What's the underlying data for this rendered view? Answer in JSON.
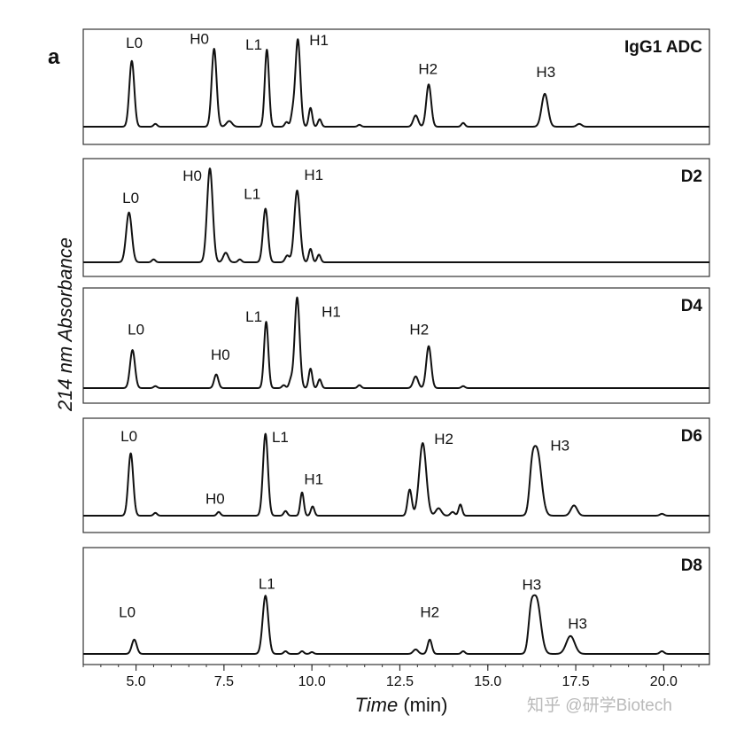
{
  "figure_letter": "a",
  "watermark": "知乎 @研学Biotech",
  "chart_data": {
    "type": "line",
    "xlabel_italic": "Time",
    "xlabel_unit": "(min)",
    "ylabel": "214 nm Absorbance",
    "xlim": [
      3.5,
      21.3
    ],
    "x_ticks": [
      {
        "value": 5,
        "label": "5.0"
      },
      {
        "value": 7.5,
        "label": "7.5"
      },
      {
        "value": 10,
        "label": "10.0"
      },
      {
        "value": 12.5,
        "label": "12.5"
      },
      {
        "value": 15,
        "label": "15.0"
      },
      {
        "value": 17.5,
        "label": "17.5"
      },
      {
        "value": 20,
        "label": "20.0"
      }
    ],
    "minor_tick_step": 0.5,
    "grid": false,
    "panels": [
      {
        "name": "IgG1 ADC",
        "peaks": [
          {
            "t": 4.88,
            "h": 0.7,
            "w": 0.07
          },
          {
            "t": 5.55,
            "h": 0.03,
            "w": 0.05
          },
          {
            "t": 7.22,
            "h": 0.83,
            "w": 0.07
          },
          {
            "t": 7.65,
            "h": 0.06,
            "w": 0.08
          },
          {
            "t": 8.72,
            "h": 0.82,
            "w": 0.06
          },
          {
            "t": 9.28,
            "h": 0.05,
            "w": 0.05
          },
          {
            "t": 9.45,
            "h": 0.12,
            "w": 0.05
          },
          {
            "t": 9.6,
            "h": 0.93,
            "w": 0.07
          },
          {
            "t": 9.96,
            "h": 0.2,
            "w": 0.05
          },
          {
            "t": 10.22,
            "h": 0.08,
            "w": 0.05
          },
          {
            "t": 11.35,
            "h": 0.02,
            "w": 0.05
          },
          {
            "t": 12.95,
            "h": 0.12,
            "w": 0.07
          },
          {
            "t": 13.32,
            "h": 0.45,
            "w": 0.07
          },
          {
            "t": 14.3,
            "h": 0.04,
            "w": 0.05
          },
          {
            "t": 16.62,
            "h": 0.35,
            "w": 0.09
          },
          {
            "t": 17.6,
            "h": 0.03,
            "w": 0.07
          }
        ],
        "labels": [
          {
            "text": "L0",
            "t": 4.95,
            "h": 0.84
          },
          {
            "text": "H0",
            "t": 6.8,
            "h": 0.88
          },
          {
            "text": "L1",
            "t": 8.35,
            "h": 0.82
          },
          {
            "text": "H1",
            "t": 10.2,
            "h": 0.87
          },
          {
            "text": "H2",
            "t": 13.3,
            "h": 0.56
          },
          {
            "text": "H3",
            "t": 16.65,
            "h": 0.53
          }
        ]
      },
      {
        "name": "D2",
        "peaks": [
          {
            "t": 4.8,
            "h": 0.52,
            "w": 0.08
          },
          {
            "t": 5.5,
            "h": 0.03,
            "w": 0.05
          },
          {
            "t": 7.1,
            "h": 0.98,
            "w": 0.08
          },
          {
            "t": 7.55,
            "h": 0.1,
            "w": 0.07
          },
          {
            "t": 7.95,
            "h": 0.03,
            "w": 0.05
          },
          {
            "t": 8.68,
            "h": 0.56,
            "w": 0.07
          },
          {
            "t": 9.3,
            "h": 0.07,
            "w": 0.06
          },
          {
            "t": 9.58,
            "h": 0.75,
            "w": 0.08
          },
          {
            "t": 9.96,
            "h": 0.14,
            "w": 0.05
          },
          {
            "t": 10.2,
            "h": 0.08,
            "w": 0.05
          }
        ],
        "labels": [
          {
            "text": "L0",
            "t": 4.85,
            "h": 0.62
          },
          {
            "text": "H0",
            "t": 6.6,
            "h": 0.85
          },
          {
            "text": "L1",
            "t": 8.3,
            "h": 0.66
          },
          {
            "text": "H1",
            "t": 10.05,
            "h": 0.86
          }
        ]
      },
      {
        "name": "D4",
        "peaks": [
          {
            "t": 4.9,
            "h": 0.39,
            "w": 0.07
          },
          {
            "t": 5.55,
            "h": 0.02,
            "w": 0.05
          },
          {
            "t": 7.28,
            "h": 0.14,
            "w": 0.06
          },
          {
            "t": 8.7,
            "h": 0.68,
            "w": 0.06
          },
          {
            "t": 9.2,
            "h": 0.03,
            "w": 0.05
          },
          {
            "t": 9.4,
            "h": 0.08,
            "w": 0.05
          },
          {
            "t": 9.58,
            "h": 0.93,
            "w": 0.07
          },
          {
            "t": 9.96,
            "h": 0.2,
            "w": 0.05
          },
          {
            "t": 10.22,
            "h": 0.09,
            "w": 0.05
          },
          {
            "t": 11.35,
            "h": 0.03,
            "w": 0.05
          },
          {
            "t": 12.95,
            "h": 0.12,
            "w": 0.07
          },
          {
            "t": 13.32,
            "h": 0.43,
            "w": 0.07
          },
          {
            "t": 14.3,
            "h": 0.02,
            "w": 0.05
          }
        ],
        "labels": [
          {
            "text": "L0",
            "t": 5.0,
            "h": 0.55
          },
          {
            "text": "H0",
            "t": 7.4,
            "h": 0.29
          },
          {
            "text": "L1",
            "t": 8.35,
            "h": 0.68
          },
          {
            "text": "H1",
            "t": 10.55,
            "h": 0.73
          },
          {
            "text": "H2",
            "t": 13.05,
            "h": 0.55
          }
        ]
      },
      {
        "name": "D6",
        "peaks": [
          {
            "t": 4.85,
            "h": 0.67,
            "w": 0.07
          },
          {
            "t": 5.55,
            "h": 0.03,
            "w": 0.05
          },
          {
            "t": 7.35,
            "h": 0.04,
            "w": 0.05
          },
          {
            "t": 8.68,
            "h": 0.88,
            "w": 0.07
          },
          {
            "t": 9.25,
            "h": 0.05,
            "w": 0.05
          },
          {
            "t": 9.72,
            "h": 0.25,
            "w": 0.05
          },
          {
            "t": 10.02,
            "h": 0.1,
            "w": 0.05
          },
          {
            "t": 12.78,
            "h": 0.28,
            "w": 0.06
          },
          {
            "t": 13.15,
            "h": 0.78,
            "w": 0.1
          },
          {
            "t": 13.6,
            "h": 0.08,
            "w": 0.08
          },
          {
            "t": 14.0,
            "h": 0.04,
            "w": 0.06
          },
          {
            "t": 14.22,
            "h": 0.12,
            "w": 0.05
          },
          {
            "t": 16.25,
            "h": 0.3,
            "w": 0.07
          },
          {
            "t": 16.4,
            "h": 0.7,
            "w": 0.12
          },
          {
            "t": 17.45,
            "h": 0.11,
            "w": 0.09
          },
          {
            "t": 19.95,
            "h": 0.02,
            "w": 0.06
          }
        ],
        "labels": [
          {
            "text": "L0",
            "t": 4.8,
            "h": 0.8
          },
          {
            "text": "H0",
            "t": 7.25,
            "h": 0.13
          },
          {
            "text": "L1",
            "t": 9.1,
            "h": 0.79
          },
          {
            "text": "H1",
            "t": 10.05,
            "h": 0.34
          },
          {
            "text": "H2",
            "t": 13.75,
            "h": 0.77
          },
          {
            "text": "H3",
            "t": 17.05,
            "h": 0.7
          }
        ]
      },
      {
        "name": "D8",
        "peaks": [
          {
            "t": 4.95,
            "h": 0.16,
            "w": 0.07
          },
          {
            "t": 8.68,
            "h": 0.65,
            "w": 0.08
          },
          {
            "t": 9.25,
            "h": 0.03,
            "w": 0.05
          },
          {
            "t": 9.72,
            "h": 0.03,
            "w": 0.05
          },
          {
            "t": 10.0,
            "h": 0.02,
            "w": 0.05
          },
          {
            "t": 12.95,
            "h": 0.05,
            "w": 0.07
          },
          {
            "t": 13.35,
            "h": 0.16,
            "w": 0.06
          },
          {
            "t": 14.3,
            "h": 0.03,
            "w": 0.05
          },
          {
            "t": 16.22,
            "h": 0.3,
            "w": 0.07
          },
          {
            "t": 16.38,
            "h": 0.62,
            "w": 0.12
          },
          {
            "t": 17.35,
            "h": 0.2,
            "w": 0.12
          },
          {
            "t": 19.95,
            "h": 0.03,
            "w": 0.06
          }
        ],
        "labels": [
          {
            "text": "L0",
            "t": 4.75,
            "h": 0.41
          },
          {
            "text": "L1",
            "t": 8.72,
            "h": 0.73
          },
          {
            "text": "H2",
            "t": 13.35,
            "h": 0.41
          },
          {
            "text": "H3",
            "t": 16.25,
            "h": 0.72
          },
          {
            "text": "H3",
            "t": 17.55,
            "h": 0.28
          }
        ]
      }
    ]
  }
}
